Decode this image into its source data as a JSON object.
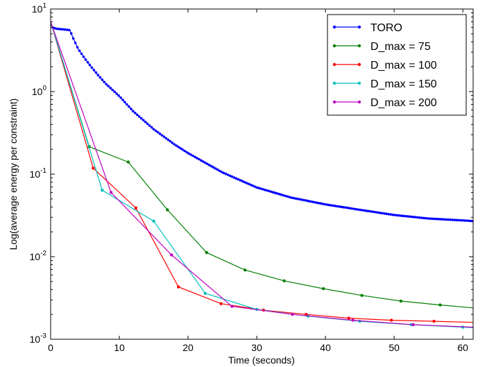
{
  "chart_data": {
    "type": "line",
    "xlabel": "Time (seconds)",
    "ylabel": "Log(average energy per constraint)",
    "xlim": [
      0,
      61.5
    ],
    "ylim": [
      0.001,
      10
    ],
    "yscale": "log",
    "grid": false,
    "legend_position": "top-right",
    "x_ticks": [
      "0",
      "10",
      "20",
      "30",
      "40",
      "50",
      "60"
    ],
    "x_tick_values": [
      0,
      10,
      20,
      30,
      40,
      50,
      60
    ],
    "y_ticks": [
      {
        "value": 10,
        "base": "10",
        "exp": "1"
      },
      {
        "value": 1,
        "base": "10",
        "exp": "0"
      },
      {
        "value": 0.1,
        "base": "10",
        "exp": "-1"
      },
      {
        "value": 0.01,
        "base": "10",
        "exp": "-2"
      },
      {
        "value": 0.001,
        "base": "10",
        "exp": "-3"
      }
    ],
    "series": [
      {
        "name": "TORO",
        "color": "#0000ff",
        "kind": "toro",
        "x": [
          0,
          0.3,
          0.6,
          1.0,
          1.5,
          2.0,
          2.4,
          2.8,
          3.3,
          4.0,
          5.0,
          6.0,
          7.0,
          8.0,
          9.0,
          10.0,
          12.0,
          15.0,
          18.0,
          20.0,
          25.0,
          30.0,
          35.0,
          40.0,
          45.0,
          50.0,
          55.0,
          60.0,
          61.5
        ],
        "values": [
          6.5,
          6.0,
          5.85,
          5.75,
          5.7,
          5.65,
          5.6,
          5.55,
          4.4,
          3.3,
          2.5,
          1.95,
          1.55,
          1.25,
          1.05,
          0.88,
          0.58,
          0.35,
          0.23,
          0.18,
          0.105,
          0.069,
          0.052,
          0.043,
          0.037,
          0.032,
          0.029,
          0.0275,
          0.027
        ]
      },
      {
        "name": "D_max = 75",
        "color": "#007f00",
        "x": [
          0,
          5.6,
          11.3,
          17.0,
          22.7,
          28.3,
          34.0,
          39.7,
          45.3,
          51.0,
          56.7,
          61.5
        ],
        "values": [
          7.0,
          0.215,
          0.14,
          0.037,
          0.0112,
          0.0069,
          0.0051,
          0.0041,
          0.0034,
          0.0029,
          0.0026,
          0.0024
        ]
      },
      {
        "name": "D_max = 100",
        "color": "#ff0000",
        "x": [
          0,
          6.2,
          12.4,
          18.6,
          24.8,
          31.0,
          37.2,
          43.4,
          49.6,
          55.8,
          61.5
        ],
        "values": [
          7.0,
          0.118,
          0.039,
          0.0043,
          0.0027,
          0.00225,
          0.002,
          0.0018,
          0.0017,
          0.00165,
          0.0016
        ]
      },
      {
        "name": "D_max = 150",
        "color": "#00bfbf",
        "x": [
          0,
          7.5,
          15.0,
          22.5,
          30.0,
          37.5,
          45.0,
          52.5,
          60.0,
          61.5
        ],
        "values": [
          7.0,
          0.064,
          0.027,
          0.0036,
          0.0023,
          0.0019,
          0.00165,
          0.0015,
          0.0014,
          0.00138
        ]
      },
      {
        "name": "D_max = 200",
        "color": "#bf00bf",
        "x": [
          0,
          8.8,
          17.6,
          26.4,
          35.2,
          44.0,
          52.8,
          61.5
        ],
        "values": [
          7.0,
          0.06,
          0.0105,
          0.0025,
          0.002,
          0.0017,
          0.0015,
          0.0014
        ]
      }
    ]
  }
}
